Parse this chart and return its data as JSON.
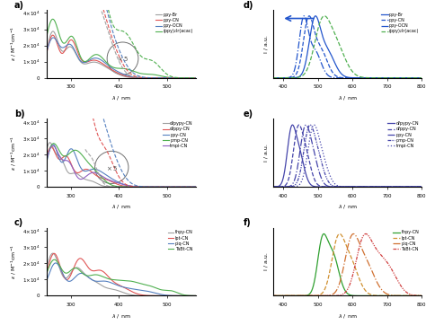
{
  "abs_xlim": [
    250,
    560
  ],
  "abs_ylim": [
    0,
    42000.0
  ],
  "abs_yticks": [
    0,
    10000,
    20000,
    30000,
    40000
  ],
  "abs_xticks": [
    300,
    400,
    500
  ],
  "em_xlim": [
    370,
    800
  ],
  "em_ylim": [
    0,
    1.1
  ],
  "em_xticks": [
    400,
    500,
    600,
    700,
    800
  ],
  "panel_a_legend": [
    "ppy-Br",
    "ppy-CN",
    "ppy-OCN",
    "(ppy)₂Ir(acac)"
  ],
  "panel_a_colors": [
    "#a0a0a0",
    "#e05555",
    "#5580c0",
    "#50b050"
  ],
  "panel_b_legend": [
    "dfpypy-CN",
    "dfppy-CN",
    "ppy-CN",
    "pmp-CN",
    "tmpi-CN"
  ],
  "panel_b_colors": [
    "#a0a0a0",
    "#e05555",
    "#5580c0",
    "#50b050",
    "#9060c0"
  ],
  "panel_c_legend": [
    "thpy-CN",
    "lpt-CN",
    "piq-CN",
    "TaBt-CN"
  ],
  "panel_c_colors": [
    "#a0a0a0",
    "#e05555",
    "#5580c0",
    "#50b050"
  ],
  "panel_d_legend": [
    "ppy-Br",
    "ppy-CN",
    "ppy-OCN",
    "(ppy)₂Ir(acac)"
  ],
  "panel_d_colors": [
    "#2255cc",
    "#2255cc",
    "#2255cc",
    "#50b050"
  ],
  "panel_d_ls": [
    "solid",
    "dashed",
    "dashdot",
    "dashed"
  ],
  "panel_e_legend": [
    "dfpypy-CN",
    "dfppy-CN",
    "ppy-CN",
    "pmp-CN",
    "tmpi-CN"
  ],
  "panel_e_color": "#4444aa",
  "panel_f_legend": [
    "thpy-CN",
    "lpt-CN",
    "piq-CN",
    "TaBt-CN"
  ],
  "panel_f_colors": [
    "#30a030",
    "#d09030",
    "#d07030",
    "#d04040"
  ],
  "panel_f_ls": [
    "solid",
    "dashed",
    "dashdot",
    "dashdotdotted"
  ]
}
